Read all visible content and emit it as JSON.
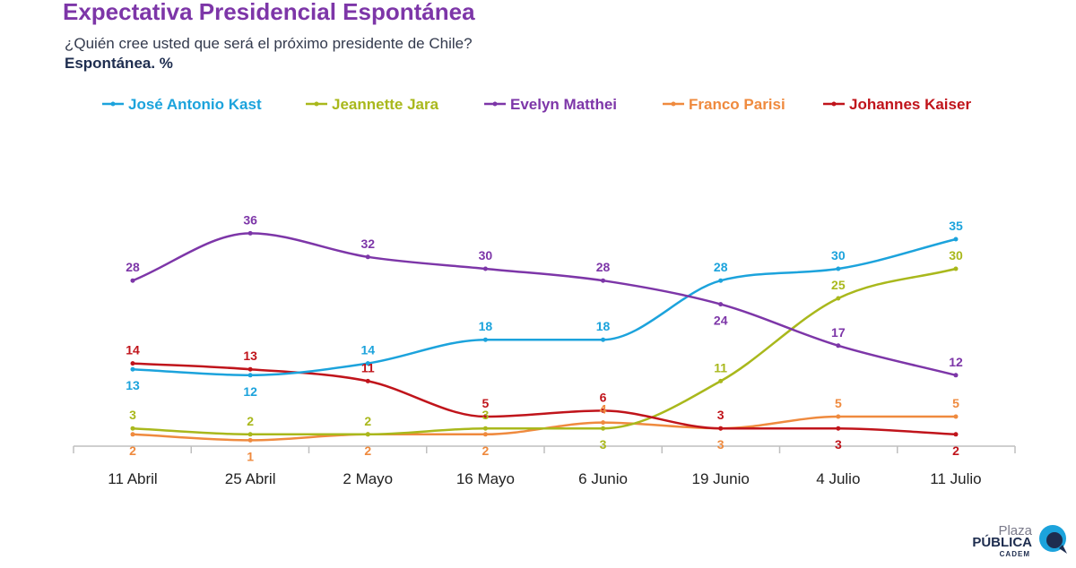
{
  "header": {
    "title": "Expectativa Presidencial Espontánea",
    "subtitle": "¿Quién cree usted que será el próximo presidente de Chile?",
    "unit": "Espontánea. %"
  },
  "chart_data": {
    "type": "line",
    "title": "Expectativa Presidencial Espontánea",
    "subtitle": "¿Quién cree usted que será el próximo presidente de Chile?",
    "ylabel": "Espontánea. %",
    "xlabel": "",
    "ylim": [
      0,
      40
    ],
    "grid": false,
    "legend": "top",
    "categories": [
      "11 Abril",
      "25 Abril",
      "2 Mayo",
      "16 Mayo",
      "6 Junio",
      "19 Junio",
      "4 Julio",
      "11 Julio"
    ],
    "series": [
      {
        "name": "José Antonio Kast",
        "color": "#1ca3dc",
        "values": [
          13,
          12,
          14,
          18,
          18,
          28,
          30,
          35
        ]
      },
      {
        "name": "Jeannette Jara",
        "color": "#a9b81c",
        "values": [
          3,
          2,
          2,
          3,
          3,
          11,
          25,
          30
        ]
      },
      {
        "name": "Evelyn Matthei",
        "color": "#7d36a8",
        "values": [
          28,
          36,
          32,
          30,
          28,
          24,
          17,
          12
        ]
      },
      {
        "name": "Franco Parisi",
        "color": "#ef8a3e",
        "values": [
          2,
          1,
          2,
          2,
          4,
          3,
          5,
          5
        ]
      },
      {
        "name": "Johannes Kaiser",
        "color": "#c0141b",
        "values": [
          14,
          13,
          11,
          5,
          6,
          3,
          3,
          2
        ]
      }
    ]
  },
  "logo": {
    "line1": "Plaza",
    "line2": "PÚBLICA",
    "line3": "CADEM",
    "colors": [
      "#1ca3dc",
      "#1e2d4f"
    ]
  }
}
